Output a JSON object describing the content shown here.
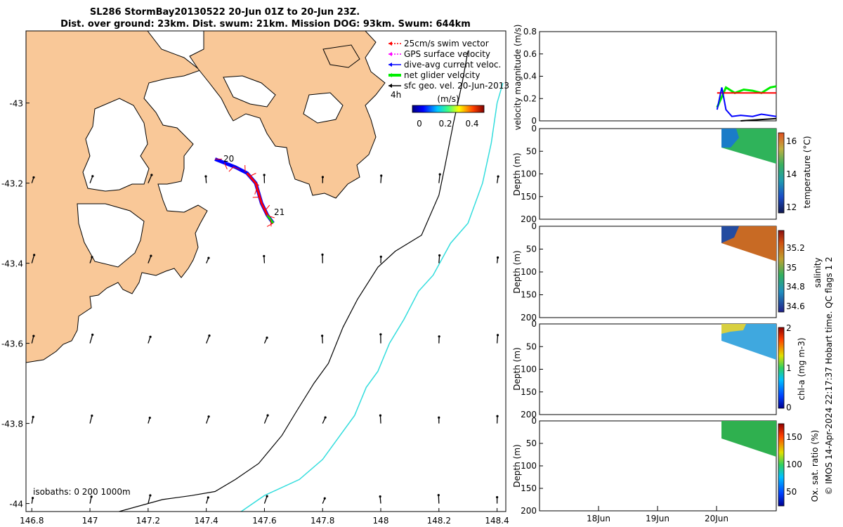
{
  "title": {
    "line1": "SL286 StormBay20130522 20-Jun 01Z to 20-Jun 23Z.",
    "line2": "Dist. over ground: 23km. Dist. swum: 21km. Mission DOG: 93km. Swum: 644km"
  },
  "legend": {
    "items": [
      {
        "label": "25cm/s swim vector",
        "color": "#ff0000",
        "dash": true
      },
      {
        "label": "GPS surface velocity",
        "color": "#ff00ff",
        "dash": true
      },
      {
        "label": "dive-avg current veloc.",
        "color": "#0000ff",
        "dash": false
      },
      {
        "label": "net glider velocity",
        "color": "#00ee00",
        "dash": false,
        "bold": true
      },
      {
        "label": "sfc geo. vel. 20-Jun-2013",
        "color": "#000000",
        "dash": false
      }
    ],
    "scale_label": "4h"
  },
  "colorbar": {
    "unit": "(m/s)",
    "ticks": [
      "0",
      "0.2",
      "0.4"
    ],
    "range": [
      0,
      0.5
    ]
  },
  "map_annotations": {
    "start_label": "20",
    "end_label": "21",
    "isobaths_label": "isobaths: 0   200  1000m"
  },
  "right_panels": {
    "velocity_label": "velocity magnitude (m/s)",
    "depth_label": "Depth (m)",
    "temperature": {
      "label": "temperature (°C)",
      "ticks": [
        "16",
        "14",
        "12"
      ]
    },
    "salinity": {
      "label": "salinity",
      "ticks": [
        "35.2",
        "35",
        "34.8",
        "34.6"
      ]
    },
    "chla": {
      "label": "chl-a (mg m-3)",
      "ticks": [
        "2",
        "1",
        "0"
      ]
    },
    "oxygen": {
      "label": "Ox. sat. ratio (%)",
      "ticks": [
        "150",
        "100",
        "50"
      ]
    },
    "time_ticks": [
      "18Jun",
      "19Jun",
      "20Jun"
    ]
  },
  "credit": "© IMOS 14-Apr-2024 22:17:37 Hobart time. QC flags 1  2",
  "chart_data": [
    {
      "type": "map",
      "x_ticks": [
        "146.8",
        "147",
        "147.2",
        "147.4",
        "147.6",
        "147.8",
        "148",
        "148.2",
        "148.4"
      ],
      "x_values": [
        146.8,
        147.0,
        147.2,
        147.4,
        147.6,
        147.8,
        148.0,
        148.2,
        148.4
      ],
      "y_ticks": [
        "-43",
        "-43.2",
        "-43.4",
        "-43.6",
        "-43.8",
        "-44"
      ],
      "y_values": [
        -43.0,
        -43.2,
        -43.4,
        -43.6,
        -43.8,
        -44.0
      ],
      "xlim": [
        146.78,
        148.43
      ],
      "ylim": [
        -44.02,
        -42.82
      ],
      "glider_track": [
        [
          147.43,
          -43.14
        ],
        [
          147.5,
          -43.16
        ],
        [
          147.54,
          -43.175
        ],
        [
          147.57,
          -43.2
        ],
        [
          147.59,
          -43.25
        ],
        [
          147.61,
          -43.28
        ],
        [
          147.63,
          -43.3
        ]
      ],
      "isobath_200m": [
        [
          147.0,
          -44.03
        ],
        [
          147.1,
          -44.02
        ],
        [
          147.25,
          -43.99
        ],
        [
          147.35,
          -43.98
        ],
        [
          147.43,
          -43.97
        ],
        [
          147.5,
          -43.94
        ],
        [
          147.58,
          -43.9
        ],
        [
          147.66,
          -43.83
        ],
        [
          147.71,
          -43.77
        ],
        [
          147.77,
          -43.7
        ],
        [
          147.82,
          -43.65
        ],
        [
          147.87,
          -43.56
        ],
        [
          147.92,
          -43.49
        ],
        [
          147.99,
          -43.41
        ],
        [
          148.05,
          -43.37
        ],
        [
          148.14,
          -43.33
        ],
        [
          148.2,
          -43.23
        ],
        [
          148.22,
          -43.16
        ],
        [
          148.25,
          -43.05
        ],
        [
          148.28,
          -42.95
        ],
        [
          148.3,
          -42.87
        ]
      ],
      "isobath_1000m": [
        [
          147.5,
          -44.03
        ],
        [
          147.6,
          -43.98
        ],
        [
          147.72,
          -43.94
        ],
        [
          147.8,
          -43.89
        ],
        [
          147.85,
          -43.84
        ],
        [
          147.91,
          -43.78
        ],
        [
          147.95,
          -43.71
        ],
        [
          147.99,
          -43.67
        ],
        [
          148.03,
          -43.6
        ],
        [
          148.08,
          -43.54
        ],
        [
          148.13,
          -43.47
        ],
        [
          148.18,
          -43.43
        ],
        [
          148.24,
          -43.35
        ],
        [
          148.3,
          -43.3
        ],
        [
          148.35,
          -43.2
        ],
        [
          148.38,
          -43.1
        ],
        [
          148.4,
          -43.0
        ],
        [
          148.42,
          -42.95
        ]
      ]
    },
    {
      "type": "line",
      "title": "",
      "ylabel": "velocity magnitude (m/s)",
      "ylim": [
        0,
        0.8
      ],
      "y_ticks": [
        0,
        0.2,
        0.4,
        0.6,
        0.8
      ],
      "x_ticks": [
        "18Jun",
        "19Jun",
        "20Jun"
      ],
      "series": [
        {
          "color": "#00ee00",
          "x": [
            20.0,
            20.15,
            20.3,
            20.45,
            20.6,
            20.75,
            20.9,
            21.0
          ],
          "y": [
            0.12,
            0.3,
            0.25,
            0.28,
            0.27,
            0.25,
            0.3,
            0.31
          ]
        },
        {
          "color": "#ff0000",
          "x": [
            20.0,
            21.0
          ],
          "y": [
            0.25,
            0.25
          ]
        },
        {
          "color": "#0000ff",
          "x": [
            20.0,
            20.08,
            20.15,
            20.25,
            20.4,
            20.6,
            20.75,
            21.0
          ],
          "y": [
            0.1,
            0.3,
            0.1,
            0.04,
            0.05,
            0.04,
            0.06,
            0.04
          ]
        },
        {
          "color": "#000000",
          "x": [
            20.4,
            21.0
          ],
          "y": [
            0.0,
            0.02
          ]
        }
      ]
    },
    {
      "type": "heatmap",
      "ylabel": "Depth (m)",
      "variable": "temperature (°C)",
      "clim": [
        11.5,
        16.5
      ],
      "ylim": [
        0,
        200
      ],
      "y_ticks": [
        0,
        50,
        100,
        150,
        200
      ]
    },
    {
      "type": "heatmap",
      "ylabel": "Depth (m)",
      "variable": "salinity",
      "clim": [
        34.5,
        35.35
      ],
      "ylim": [
        0,
        200
      ],
      "y_ticks": [
        0,
        50,
        100,
        150,
        200
      ]
    },
    {
      "type": "heatmap",
      "ylabel": "Depth (m)",
      "variable": "chl-a (mg m-3)",
      "clim": [
        0,
        2
      ],
      "ylim": [
        0,
        200
      ],
      "y_ticks": [
        0,
        50,
        100,
        150,
        200
      ]
    },
    {
      "type": "heatmap",
      "ylabel": "Depth (m)",
      "variable": "Ox. sat. ratio (%)",
      "clim": [
        25,
        170
      ],
      "ylim": [
        0,
        200
      ],
      "y_ticks": [
        0,
        50,
        100,
        150,
        200
      ]
    }
  ]
}
